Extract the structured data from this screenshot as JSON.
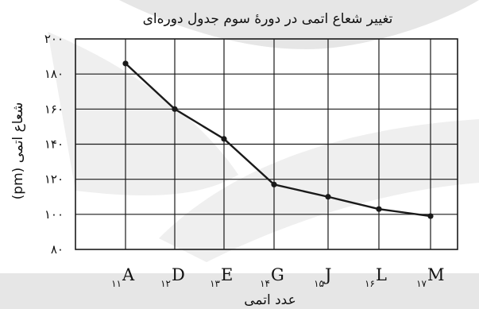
{
  "chart_data": {
    "type": "line",
    "title": "تغییر شعاع اتمی در دورهٔ سوم جدول دوره‌ای",
    "xlabel": "عدد اتمی",
    "ylabel": "شعاع اتمی (pm)",
    "ylim": [
      80,
      200
    ],
    "yticks": [
      "۸۰",
      "۱۰۰",
      "۱۲۰",
      "۱۴۰",
      "۱۶۰",
      "۱۸۰",
      "۲۰۰"
    ],
    "categories": [
      "A",
      "D",
      "E",
      "G",
      "J",
      "L",
      "M"
    ],
    "category_subscripts": [
      "۱۱",
      "۱۲",
      "۱۳",
      "۱۴",
      "۱۵",
      "۱۶",
      "۱۷"
    ],
    "series": [
      {
        "values": [
          186,
          160,
          143,
          117,
          110,
          103,
          99
        ]
      }
    ],
    "grid": true,
    "colors": {
      "line": "#1a1a1a",
      "grid": "#1a1a1a",
      "background_shape": "#e6e6e6"
    }
  }
}
